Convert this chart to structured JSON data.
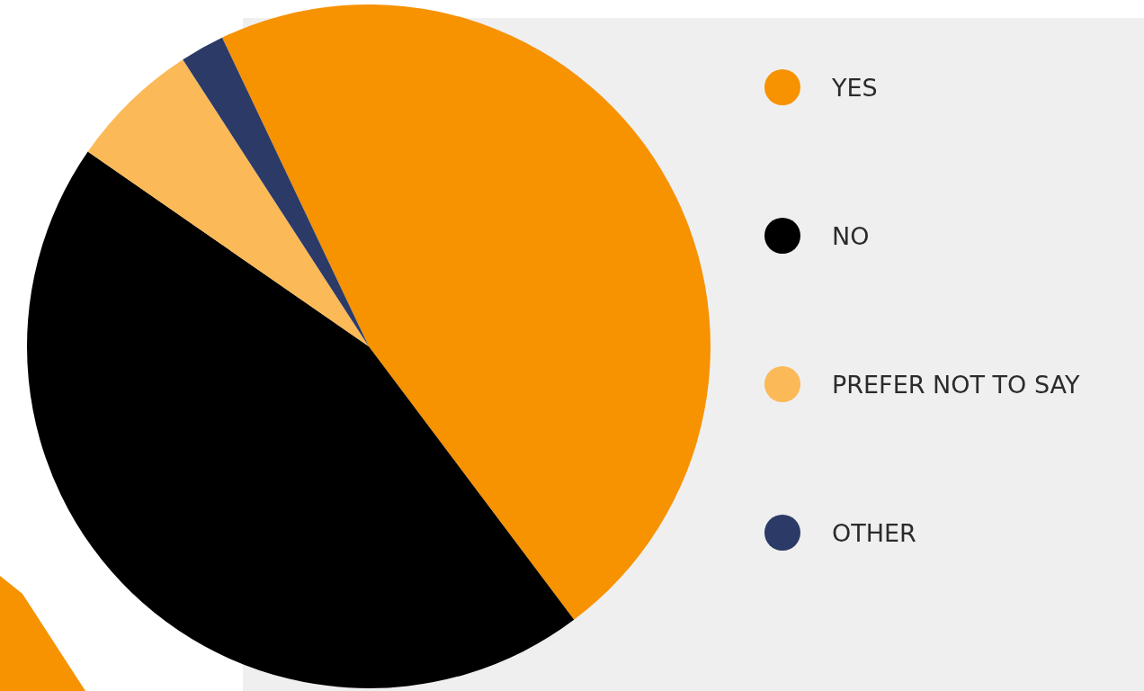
{
  "chart_data": {
    "type": "pie",
    "categories": [
      "YES",
      "NO",
      "PREFER NOT TO SAY",
      "OTHER"
    ],
    "values": [
      46.8,
      44.9,
      6.2,
      2.1
    ],
    "colors": [
      "#f79200",
      "#000000",
      "#fbb957",
      "#2b3a67"
    ],
    "legend": "right"
  }
}
